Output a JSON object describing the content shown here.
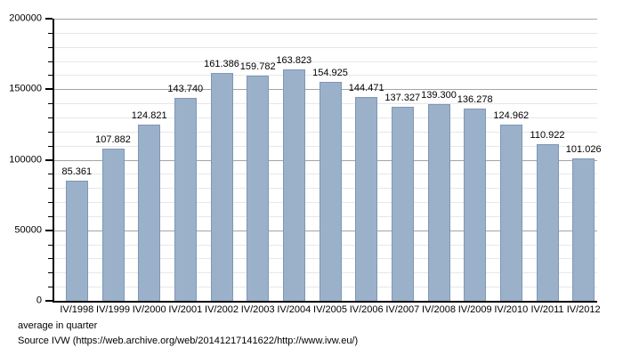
{
  "chart_data": {
    "type": "bar",
    "title": "",
    "xlabel": "",
    "ylabel": "",
    "categories": [
      "IV/1998",
      "IV/1999",
      "IV/2000",
      "IV/2001",
      "IV/2002",
      "IV/2003",
      "IV/2004",
      "IV/2005",
      "IV/2006",
      "IV/2007",
      "IV/2008",
      "IV/2009",
      "IV/2010",
      "IV/2011",
      "IV/2012"
    ],
    "values": [
      85361,
      107882,
      124821,
      143740,
      161386,
      159782,
      163823,
      154925,
      144471,
      137327,
      139300,
      136278,
      124962,
      110922,
      101026
    ],
    "value_labels": [
      "85.361",
      "107.882",
      "124.821",
      "143.740",
      "161.386",
      "159.782",
      "163.823",
      "154.925",
      "144.471",
      "137.327",
      "139.300",
      "136.278",
      "124.962",
      "110.922",
      "101.026"
    ],
    "ylim": [
      0,
      200000
    ],
    "y_major_step": 50000,
    "y_minor_step": 10000,
    "y_major_ticks": [
      0,
      50000,
      100000,
      150000,
      200000
    ],
    "y_tick_labels": [
      "0",
      "50000",
      "100000",
      "150000",
      "200000"
    ],
    "grid": true,
    "legend": "none",
    "colors": {
      "bar_fill": "#9bb1ca",
      "bar_border": "#7d97b6",
      "major_grid": "#a4a4a4",
      "minor_grid": "#e7e7e7",
      "axis": "#000000",
      "text": "#000000"
    }
  },
  "footer": {
    "note": "average in quarter",
    "source": "Source IVW (https://web.archive.org/web/20141217141622/http://www.ivw.eu/)"
  }
}
